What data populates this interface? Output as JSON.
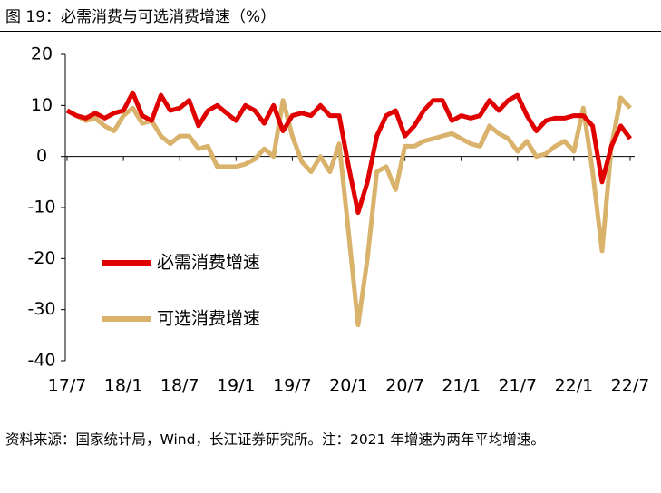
{
  "title": "图 19：必需消费与可选消费增速（%）",
  "note": "资料来源：国家统计局，Wind，长江证券研究所。注：2021 年增速为两年平均增速。",
  "chart_data": {
    "type": "line",
    "categories": [
      "17/7",
      null,
      null,
      null,
      null,
      null,
      "18/1",
      null,
      null,
      null,
      null,
      null,
      "18/7",
      null,
      null,
      null,
      null,
      null,
      "19/1",
      null,
      null,
      null,
      null,
      null,
      "19/7",
      null,
      null,
      null,
      null,
      null,
      "20/1",
      null,
      null,
      null,
      null,
      null,
      "20/7",
      null,
      null,
      null,
      null,
      null,
      "21/1",
      null,
      null,
      null,
      null,
      null,
      "21/7",
      null,
      null,
      null,
      null,
      null,
      "22/1",
      null,
      null,
      null,
      null,
      null,
      "22/7"
    ],
    "series": [
      {
        "name": "必需消费增速",
        "color": "#e00000",
        "values": [
          9,
          8,
          7.5,
          8.5,
          7.5,
          8.5,
          9,
          12.5,
          8,
          7,
          12,
          9,
          9.5,
          11,
          6,
          9,
          10,
          8.5,
          7,
          10,
          9,
          6.5,
          10,
          5,
          8,
          8.5,
          8,
          10,
          8,
          8,
          -2,
          -11,
          -5,
          4,
          8,
          9,
          4,
          6,
          9,
          11,
          11,
          7,
          8,
          7.5,
          8,
          11,
          9,
          11,
          12,
          8,
          5,
          7,
          7.5,
          7.5,
          8,
          8,
          6,
          -5,
          2,
          6,
          3.5
        ]
      },
      {
        "name": "可选消费增速",
        "color": "#d9b26b",
        "values": [
          9,
          8,
          7,
          7.5,
          6,
          5,
          8,
          9.5,
          6.5,
          7,
          4,
          2.5,
          4,
          4,
          1.5,
          2,
          -2,
          -2,
          -2,
          -1.5,
          -0.5,
          1.5,
          0,
          11,
          4,
          -1,
          -3,
          0,
          -3,
          2.5,
          -15,
          -33,
          -20,
          -3,
          -2,
          -6.5,
          2,
          2,
          3,
          3.5,
          4,
          4.5,
          3.5,
          2.5,
          2,
          6,
          4.5,
          3.5,
          1,
          3,
          0,
          0.5,
          2,
          3,
          1,
          9.5,
          -3,
          -18.5,
          2,
          11.5,
          9.5
        ]
      }
    ],
    "ylim": [
      -40,
      20
    ],
    "yticks": [
      -40,
      -30,
      -20,
      -10,
      0,
      10,
      20
    ]
  }
}
